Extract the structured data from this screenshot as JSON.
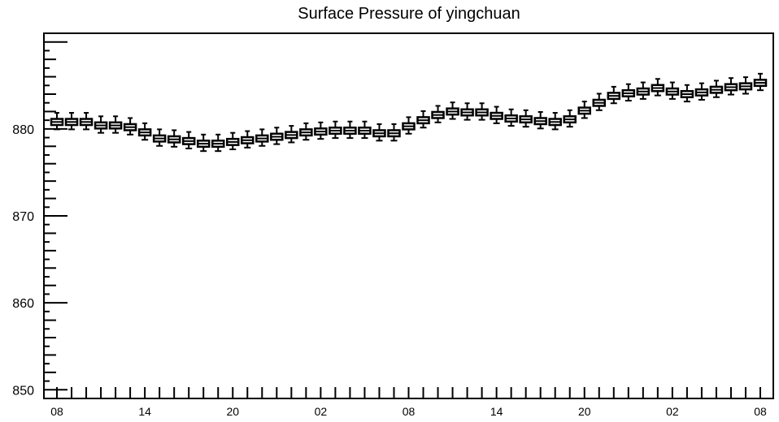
{
  "chart_data": {
    "type": "box",
    "title": "Surface Pressure of yingchuan",
    "xlabel": "",
    "ylabel": "",
    "ylim": [
      849,
      891
    ],
    "y_ticks": [
      850,
      860,
      870,
      880
    ],
    "x_tick_labels": [
      "08",
      "14",
      "20",
      "02",
      "08",
      "14",
      "20",
      "02",
      "08"
    ],
    "x_tick_steps": [
      0,
      6,
      12,
      18,
      24,
      30,
      36,
      42,
      48
    ],
    "x_range_steps": [
      0,
      49
    ],
    "grid": false,
    "series": [
      {
        "values": [
          880.8,
          880.8,
          880.8,
          880.4,
          880.4,
          880.2,
          879.6,
          878.9,
          878.8,
          878.6,
          878.3,
          878.3,
          878.5,
          878.7,
          878.9,
          879.1,
          879.3,
          879.6,
          879.7,
          879.8,
          879.8,
          879.8,
          879.5,
          879.5,
          880.3,
          881.0,
          881.6,
          882.0,
          881.9,
          881.9,
          881.5,
          881.2,
          881.1,
          880.9,
          880.8,
          881.1,
          882.1,
          883.0,
          883.8,
          884.1,
          884.3,
          884.7,
          884.3,
          884.0,
          884.2,
          884.5,
          884.8,
          884.9,
          885.3
        ]
      }
    ]
  }
}
